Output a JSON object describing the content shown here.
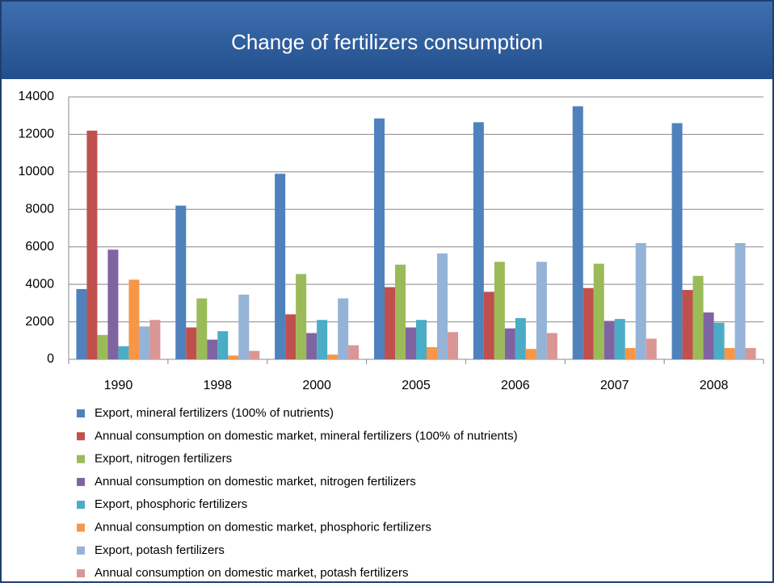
{
  "chart_data": {
    "type": "bar",
    "title": "Change of fertilizers consumption",
    "categories": [
      "1990",
      "1998",
      "2000",
      "2005",
      "2006",
      "2007",
      "2008"
    ],
    "series": [
      {
        "name": "Export, mineral fertilizers (100% of nutrients)",
        "color": "#4F81BD",
        "values": [
          3750,
          8200,
          9900,
          12850,
          12650,
          13500,
          12600
        ]
      },
      {
        "name": "Annual consumption on domestic market, mineral fertilizers (100% of nutrients)",
        "color": "#C0504D",
        "values": [
          12200,
          1700,
          2400,
          3850,
          3600,
          3800,
          3700
        ]
      },
      {
        "name": "Export, nitrogen fertilizers",
        "color": "#9BBB59",
        "values": [
          1300,
          3250,
          4550,
          5050,
          5200,
          5100,
          4450
        ]
      },
      {
        "name": "Annual consumption on domestic market, nitrogen fertilizers",
        "color": "#8064A2",
        "values": [
          5850,
          1050,
          1400,
          1700,
          1650,
          2050,
          2500
        ]
      },
      {
        "name": "Export, phosphoric fertilizers",
        "color": "#4BACC6",
        "values": [
          700,
          1500,
          2100,
          2100,
          2200,
          2150,
          1950
        ]
      },
      {
        "name": "Annual consumption on domestic market, phosphoric fertilizers",
        "color": "#F79646",
        "values": [
          4250,
          200,
          250,
          650,
          550,
          600,
          600
        ]
      },
      {
        "name": "Export, potash fertilizers",
        "color": "#95B3D7",
        "values": [
          1750,
          3450,
          3250,
          5650,
          5200,
          6200,
          6200
        ]
      },
      {
        "name": "Annual consumption on domestic market, potash fertilizers",
        "color": "#D99694",
        "values": [
          2100,
          450,
          750,
          1450,
          1400,
          1100,
          600
        ]
      }
    ],
    "ylim": [
      0,
      14000
    ],
    "yticks": [
      0,
      2000,
      4000,
      6000,
      8000,
      10000,
      12000,
      14000
    ],
    "grid": true,
    "legend": "bottom"
  }
}
